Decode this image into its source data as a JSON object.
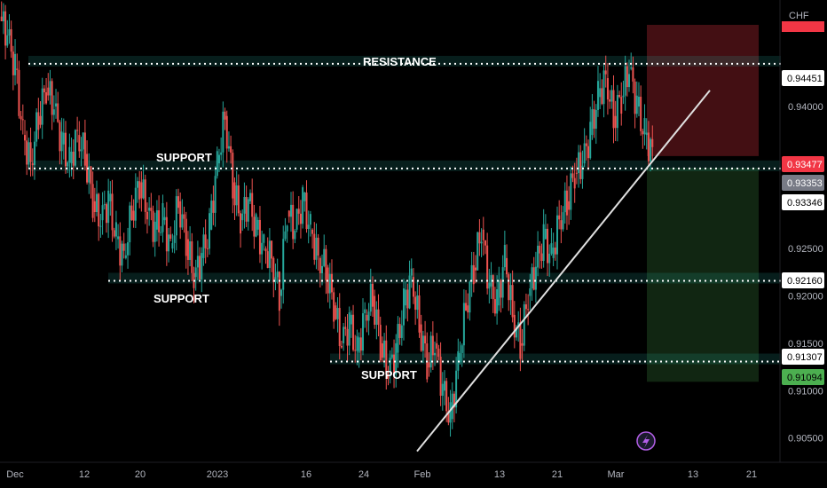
{
  "currency": "CHF",
  "annotations": {
    "resistance": "RESISTANCE",
    "support_upper": "SUPPORT",
    "support_mid": "SUPPORT",
    "support_lower": "SUPPORT"
  },
  "price_axis": {
    "ticks": [
      "0.94000",
      "0.92500",
      "0.92000",
      "0.91500",
      "0.91000",
      "0.90500"
    ],
    "level_tags": [
      {
        "name": "resistance-tag",
        "text": "0.94451",
        "bg": "#ffffff",
        "fg": "#000000"
      },
      {
        "name": "current-price-tag",
        "text": "0.93477",
        "bg": "#f23645",
        "fg": "#ffffff"
      },
      {
        "name": "entry-tag",
        "text": "0.93353",
        "bg": "#787b86",
        "fg": "#ffffff"
      },
      {
        "name": "support-upper-tag",
        "text": "0.93346",
        "bg": "#ffffff",
        "fg": "#000000"
      },
      {
        "name": "support-mid-tag",
        "text": "0.92160",
        "bg": "#ffffff",
        "fg": "#000000"
      },
      {
        "name": "support-lower-tag",
        "text": "0.91307",
        "bg": "#ffffff",
        "fg": "#000000"
      },
      {
        "name": "target-tag",
        "text": "0.91094",
        "bg": "#4caf50",
        "fg": "#000000"
      }
    ]
  },
  "time_axis": [
    "Dec",
    "12",
    "20",
    "2023",
    "16",
    "24",
    "Feb",
    "13",
    "21",
    "Mar",
    "13",
    "21"
  ],
  "colors": {
    "up": "#26a69a",
    "down": "#ef5350",
    "level_line": "#ffffff",
    "zone_fill": "#26a69a",
    "stop_zone": "#f23645",
    "target_zone": "#4caf50",
    "trendline": "#e0e0e0",
    "lightning": "#b45fe8"
  },
  "chart_data": {
    "type": "candlestick",
    "symbol_currency": "CHF",
    "x_range": [
      "Dec",
      "Mar 21"
    ],
    "y_range": [
      0.903,
      0.9505
    ],
    "levels": {
      "resistance": 0.94451,
      "support_upper": 0.93346,
      "support_mid": 0.9216,
      "support_lower": 0.91307,
      "current": 0.93477,
      "entry": 0.93353,
      "target": 0.91094
    },
    "closes_approx": [
      0.9475,
      0.944,
      0.937,
      0.934,
      0.939,
      0.942,
      0.94,
      0.936,
      0.934,
      0.937,
      0.935,
      0.93,
      0.928,
      0.93,
      0.926,
      0.924,
      0.929,
      0.932,
      0.929,
      0.927,
      0.928,
      0.925,
      0.93,
      0.926,
      0.922,
      0.924,
      0.927,
      0.934,
      0.939,
      0.932,
      0.928,
      0.93,
      0.927,
      0.925,
      0.924,
      0.92,
      0.929,
      0.927,
      0.93,
      0.927,
      0.924,
      0.923,
      0.919,
      0.915,
      0.917,
      0.914,
      0.918,
      0.92,
      0.915,
      0.912,
      0.914,
      0.919,
      0.922,
      0.917,
      0.913,
      0.915,
      0.91,
      0.907,
      0.913,
      0.919,
      0.923,
      0.927,
      0.921,
      0.919,
      0.924,
      0.918,
      0.915,
      0.92,
      0.923,
      0.926,
      0.924,
      0.928,
      0.93,
      0.933,
      0.934,
      0.937,
      0.941,
      0.943,
      0.939,
      0.941,
      0.944,
      0.94,
      0.937,
      0.935
    ]
  }
}
